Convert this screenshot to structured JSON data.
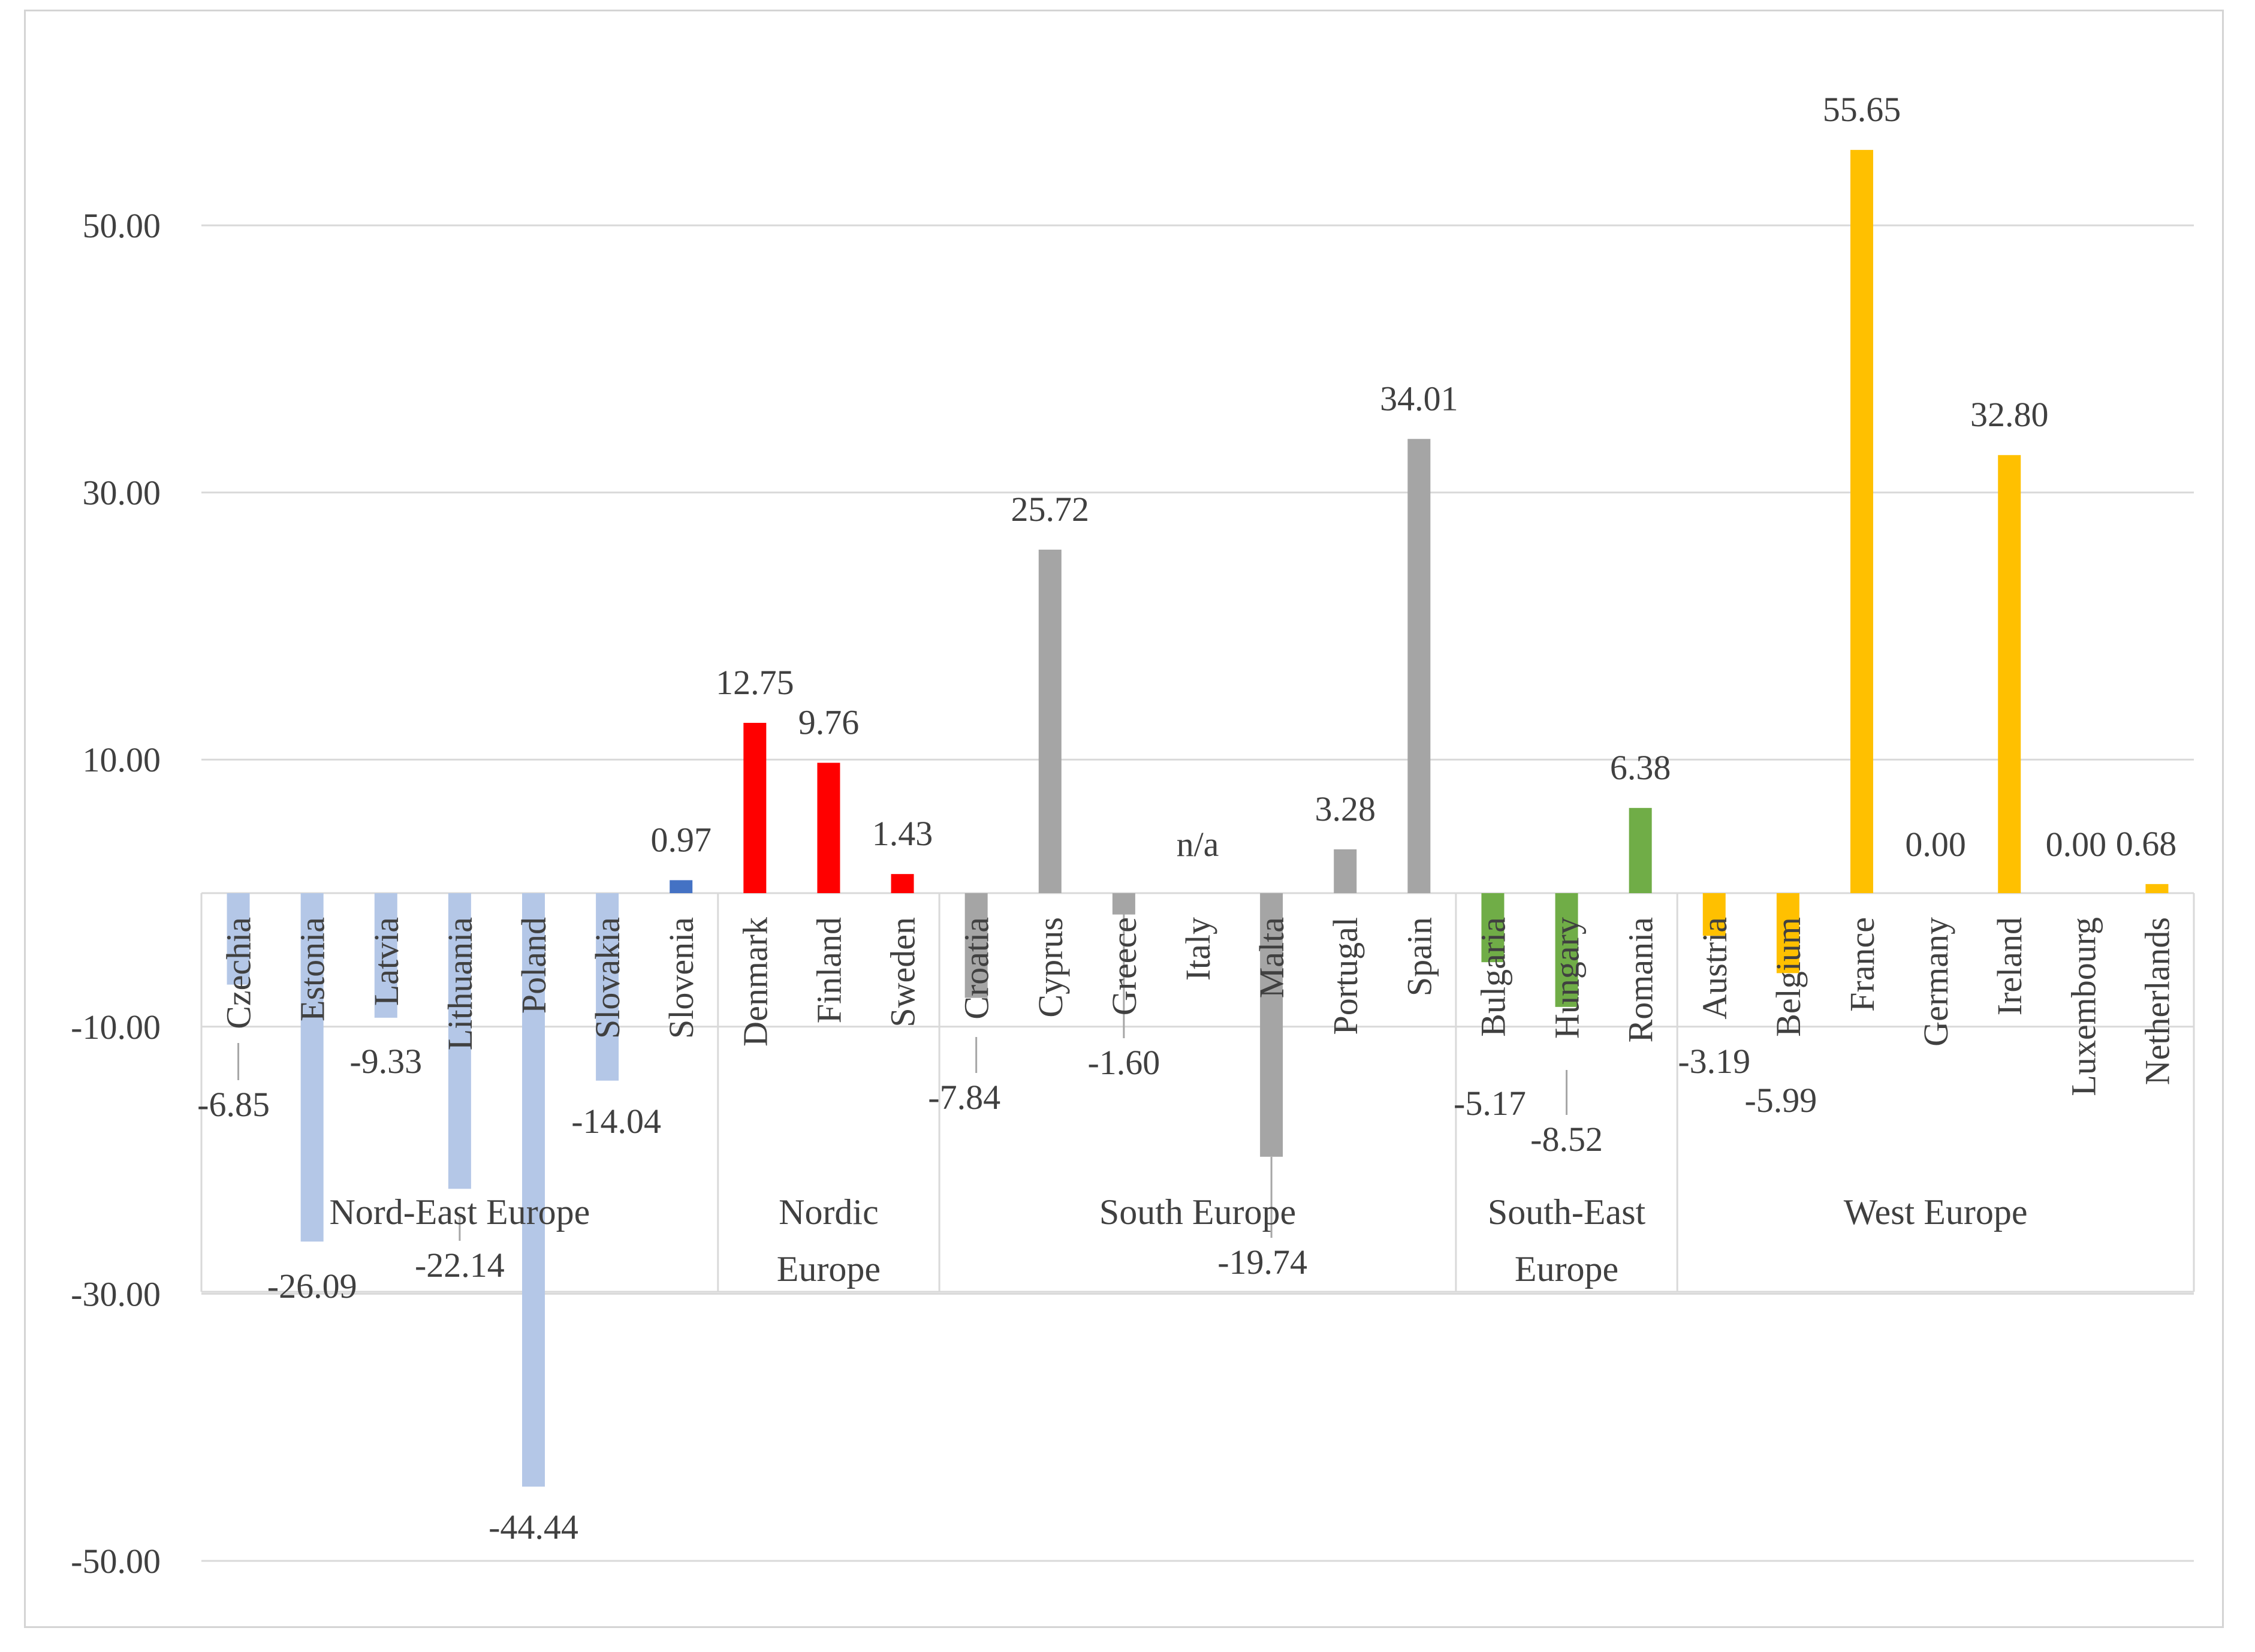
{
  "chart_data": {
    "type": "bar",
    "title": "",
    "xlabel": "",
    "ylabel": "",
    "ylim": [
      -50,
      60
    ],
    "yticks": [
      50,
      30,
      10,
      -10,
      -30,
      -50
    ],
    "ytick_labels": [
      "50.00",
      "30.00",
      "10.00",
      "-10.00",
      "-30.00",
      "-50.00"
    ],
    "grid": true,
    "legend": "none",
    "groups": [
      {
        "name": "Nord-East Europe",
        "lines": [
          "Nord-East Europe"
        ],
        "count": 7
      },
      {
        "name": "Nordic Europe",
        "lines": [
          "Nordic",
          "Europe"
        ],
        "count": 3
      },
      {
        "name": "South Europe",
        "lines": [
          "South Europe"
        ],
        "count": 7
      },
      {
        "name": "South-East Europe",
        "lines": [
          "South-East",
          "Europe"
        ],
        "count": 3
      },
      {
        "name": "West Europe",
        "lines": [
          "West Europe"
        ],
        "count": 7
      }
    ],
    "bars": [
      {
        "country": "Czechia",
        "group": "Nord-East Europe",
        "value": -6.85,
        "label": "-6.85",
        "color": "#b4c7e7"
      },
      {
        "country": "Estonia",
        "group": "Nord-East Europe",
        "value": -26.09,
        "label": "-26.09",
        "color": "#b4c7e7"
      },
      {
        "country": "Latvia",
        "group": "Nord-East Europe",
        "value": -9.33,
        "label": "-9.33",
        "color": "#b4c7e7"
      },
      {
        "country": "Lithuania",
        "group": "Nord-East Europe",
        "value": -22.14,
        "label": "-22.14",
        "color": "#b4c7e7"
      },
      {
        "country": "Poland",
        "group": "Nord-East Europe",
        "value": -44.44,
        "label": "-44.44",
        "color": "#b4c7e7"
      },
      {
        "country": "Slovakia",
        "group": "Nord-East Europe",
        "value": -14.04,
        "label": "-14.04",
        "color": "#b4c7e7"
      },
      {
        "country": "Slovenia",
        "group": "Nord-East Europe",
        "value": 0.97,
        "label": "0.97",
        "color": "#4472c4"
      },
      {
        "country": "Denmark",
        "group": "Nordic Europe",
        "value": 12.75,
        "label": "12.75",
        "color": "#ff0000"
      },
      {
        "country": "Finland",
        "group": "Nordic Europe",
        "value": 9.76,
        "label": "9.76",
        "color": "#ff0000"
      },
      {
        "country": "Sweden",
        "group": "Nordic Europe",
        "value": 1.43,
        "label": "1.43",
        "color": "#ff0000"
      },
      {
        "country": "Croatia",
        "group": "South Europe",
        "value": -7.84,
        "label": "-7.84",
        "color": "#a5a5a5"
      },
      {
        "country": "Cyprus",
        "group": "South Europe",
        "value": 25.72,
        "label": "25.72",
        "color": "#a5a5a5"
      },
      {
        "country": "Greece",
        "group": "South Europe",
        "value": -1.6,
        "label": "-1.60",
        "color": "#a5a5a5"
      },
      {
        "country": "Italy",
        "group": "South Europe",
        "value": null,
        "label": "n/a",
        "color": "#a5a5a5"
      },
      {
        "country": "Malta",
        "group": "South Europe",
        "value": -19.74,
        "label": "-19.74",
        "color": "#a5a5a5"
      },
      {
        "country": "Portugal",
        "group": "South Europe",
        "value": 3.28,
        "label": "3.28",
        "color": "#a5a5a5"
      },
      {
        "country": "Spain",
        "group": "South Europe",
        "value": 34.01,
        "label": "34.01",
        "color": "#a5a5a5"
      },
      {
        "country": "Bulgaria",
        "group": "South-East Europe",
        "value": -5.17,
        "label": "-5.17",
        "color": "#70ad47"
      },
      {
        "country": "Hungary",
        "group": "South-East Europe",
        "value": -8.52,
        "label": "-8.52",
        "color": "#70ad47"
      },
      {
        "country": "Romania",
        "group": "South-East Europe",
        "value": 6.38,
        "label": "6.38",
        "color": "#70ad47"
      },
      {
        "country": "Austria",
        "group": "West Europe",
        "value": -3.19,
        "label": "-3.19",
        "color": "#ffc000"
      },
      {
        "country": "Belgium",
        "group": "West Europe",
        "value": -5.99,
        "label": "-5.99",
        "color": "#ffc000"
      },
      {
        "country": "France",
        "group": "West Europe",
        "value": 55.65,
        "label": "55.65",
        "color": "#ffc000"
      },
      {
        "country": "Germany",
        "group": "West Europe",
        "value": 0.0,
        "label": "0.00",
        "color": "#ffc000"
      },
      {
        "country": "Ireland",
        "group": "West Europe",
        "value": 32.8,
        "label": "32.80",
        "color": "#ffc000"
      },
      {
        "country": "Luxembourg",
        "group": "West Europe",
        "value": 0.0,
        "label": "0.00",
        "color": "#ffc000"
      },
      {
        "country": "Netherlands",
        "group": "West Europe",
        "value": 0.68,
        "label": "0.68",
        "color": "#ffc000"
      }
    ]
  }
}
